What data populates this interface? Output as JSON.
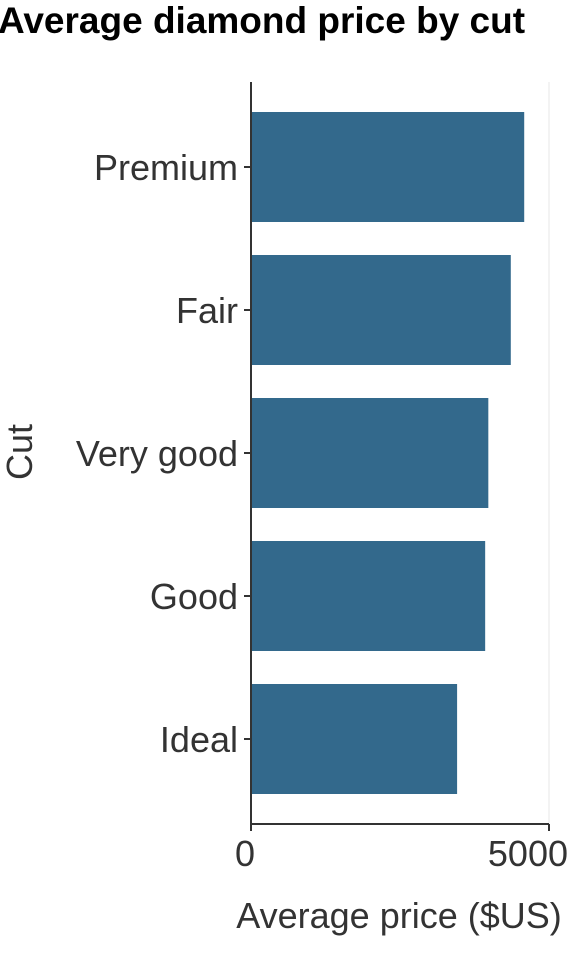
{
  "chart_data": {
    "type": "bar",
    "orientation": "horizontal",
    "title": "Average diamond price by cut",
    "xlabel": "Average price ($US)",
    "ylabel": "Cut",
    "categories": [
      "Premium",
      "Fair",
      "Very good",
      "Good",
      "Ideal"
    ],
    "values": [
      4584,
      4359,
      3982,
      3929,
      3458
    ],
    "xlim": [
      0,
      5000
    ],
    "x_ticks": [
      "0",
      "5000"
    ],
    "grid": "vertical major only",
    "legend": "none",
    "colors": {
      "bar": "#33698c",
      "axis": "#333333",
      "grid": "#ebebeb"
    }
  }
}
